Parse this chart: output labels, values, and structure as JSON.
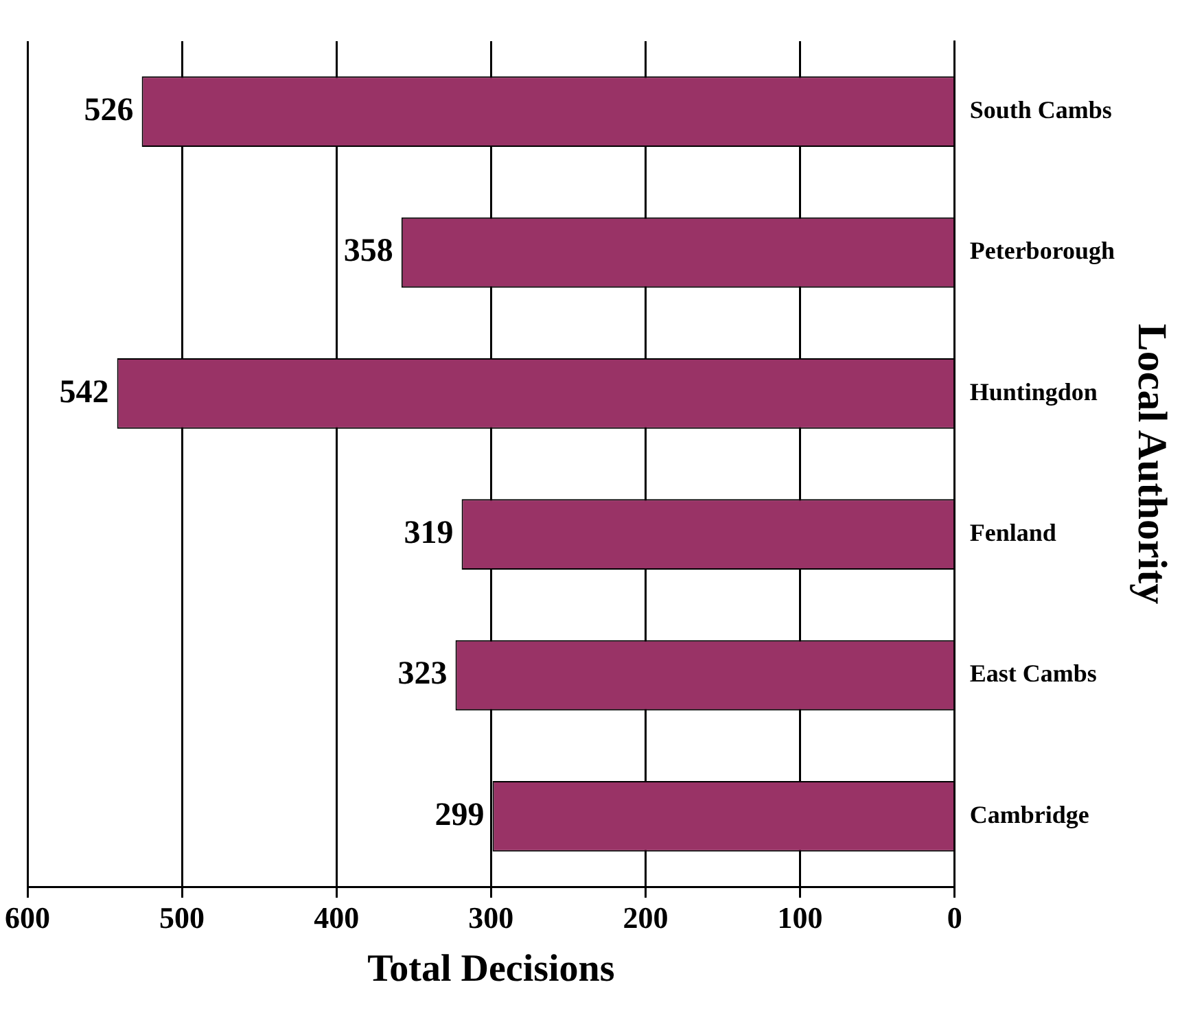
{
  "chart_data": {
    "type": "bar",
    "orientation": "horizontal",
    "xlabel": "Total Decisions",
    "ylabel": "Local Authority",
    "categories": [
      "South Cambs",
      "Peterborough",
      "Huntingdon",
      "Fenland",
      "East Cambs",
      "Cambridge"
    ],
    "values": [
      526,
      358,
      542,
      319,
      323,
      299
    ],
    "color": "#993366",
    "xlim": [
      600,
      0
    ],
    "xticks": [
      0,
      100,
      200,
      300,
      400,
      500,
      600
    ],
    "grid": "x",
    "data_labels": true,
    "legend": false
  }
}
